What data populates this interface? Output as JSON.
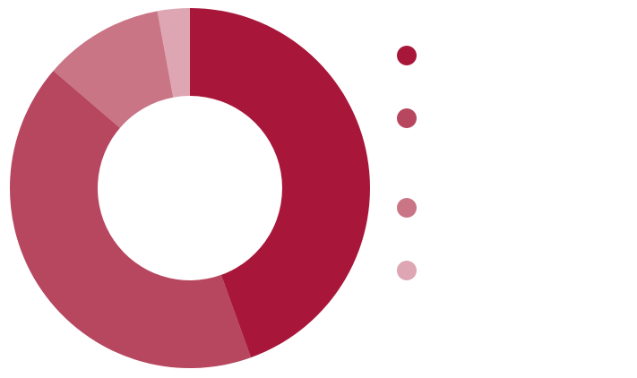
{
  "chart_data": {
    "type": "donut",
    "categories": [
      null,
      null,
      null,
      null
    ],
    "values": [
      44.5,
      41.8,
      10.8,
      2.9
    ],
    "colors": [
      "#a8173a",
      "#b7465f",
      "#c97585",
      "#dea5b2"
    ],
    "legend": "right"
  }
}
